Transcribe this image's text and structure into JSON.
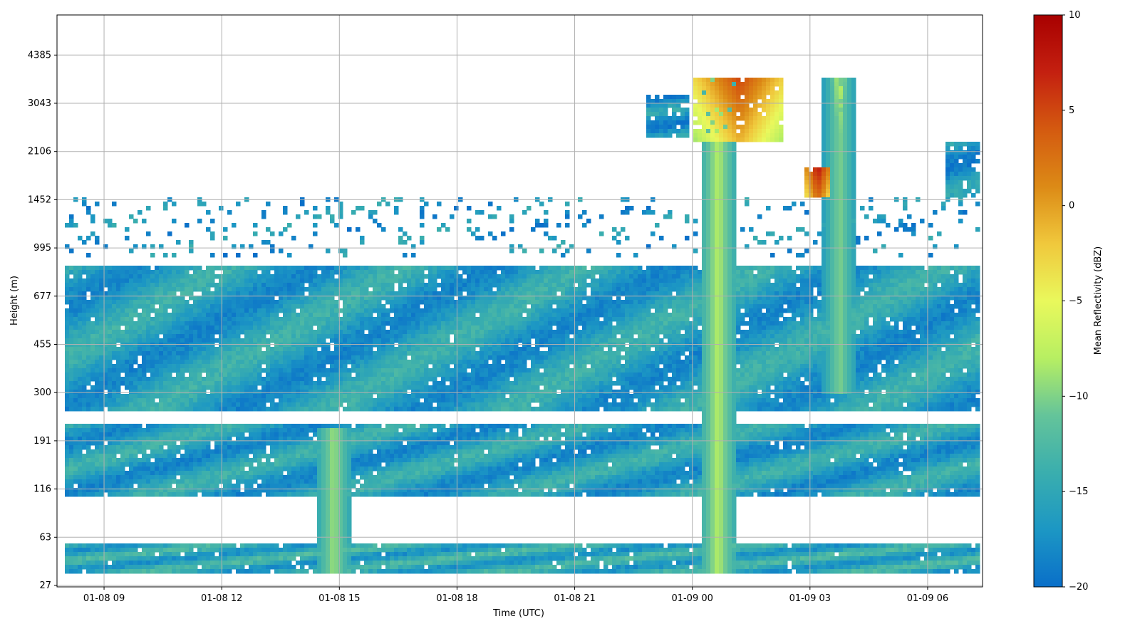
{
  "chart_data": {
    "type": "heatmap",
    "title": "",
    "xlabel": "Time (UTC)",
    "ylabel": "Height (m)",
    "x_ticks": [
      "01-08 09",
      "01-08 12",
      "01-08 15",
      "01-08 18",
      "01-08 21",
      "01-09 00",
      "01-09 03",
      "01-09 06"
    ],
    "x_tick_hours": [
      9,
      12,
      15,
      18,
      21,
      24,
      27,
      30
    ],
    "xlim_hours": [
      7.8,
      31.4
    ],
    "y_ticks": [
      "27",
      "63",
      "116",
      "191",
      "300",
      "455",
      "677",
      "995",
      "1452",
      "2106",
      "3043",
      "4385"
    ],
    "grid": true,
    "colorbar": {
      "label": "Mean Reflectivity (dBZ)",
      "min": -20,
      "max": 10,
      "ticks": [
        "10",
        "5",
        "0",
        "−5",
        "−10",
        "−15",
        "−20"
      ],
      "tick_values": [
        10,
        5,
        0,
        -5,
        -10,
        -15,
        -20
      ],
      "colors": [
        "#0a6fc9",
        "#1c97c4",
        "#3aaeae",
        "#64c49a",
        "#b7ef62",
        "#e9f85c",
        "#f0c83c",
        "#dc8a16",
        "#d45a10",
        "#c42010",
        "#a80000"
      ]
    },
    "layers": [
      {
        "name": "shallow-layer",
        "height_m": [
          36,
          58
        ],
        "time_hours": [
          8.0,
          31.3
        ],
        "dbz": -15
      },
      {
        "name": "lower-layer",
        "height_m": [
          110,
          225
        ],
        "time_hours": [
          8.0,
          31.3
        ],
        "dbz": -16
      },
      {
        "name": "boundary-layer",
        "height_m": [
          260,
          870
        ],
        "time_hours": [
          8.0,
          31.3
        ],
        "dbz": -16
      },
      {
        "name": "low-cloud-fragments",
        "height_m": [
          950,
          1500
        ],
        "time_hours": [
          8.0,
          31.3
        ],
        "dbz": -17
      },
      {
        "name": "mid-cloud-0010",
        "height_m": [
          2300,
          3700
        ],
        "time_hours": [
          24.0,
          26.3
        ],
        "dbz": 5
      },
      {
        "name": "mid-cloud-0230",
        "height_m": [
          1400,
          1900
        ],
        "time_hours": [
          26.8,
          27.5
        ],
        "dbz": 8
      },
      {
        "name": "mid-cloud-0320",
        "height_m": [
          1400,
          3700
        ],
        "time_hours": [
          27.4,
          28.0
        ],
        "dbz": -7
      },
      {
        "name": "upper-cloud-0600",
        "height_m": [
          1300,
          2300
        ],
        "time_hours": [
          30.4,
          31.3
        ],
        "dbz": -17
      },
      {
        "name": "upper-cloud-2330",
        "height_m": [
          2400,
          3300
        ],
        "time_hours": [
          22.8,
          23.9
        ],
        "dbz": -17
      }
    ],
    "precip_shafts": [
      {
        "time_hours": 14.8,
        "height_m": [
          36,
          220
        ],
        "dbz": -9
      },
      {
        "time_hours": 24.6,
        "height_m": [
          36,
          3700
        ],
        "dbz": -8
      },
      {
        "time_hours": 27.7,
        "height_m": [
          300,
          3700
        ],
        "dbz": -10
      }
    ]
  }
}
